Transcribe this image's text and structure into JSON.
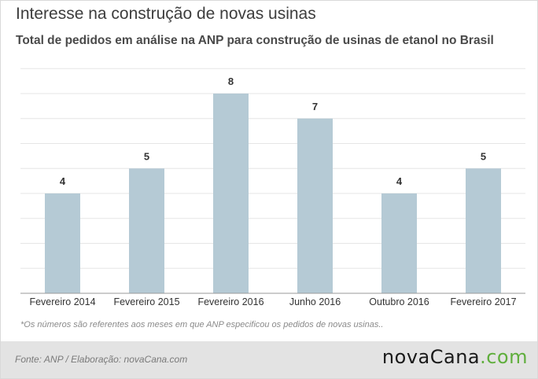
{
  "header": {
    "title": "Interesse na construção de novas usinas",
    "subtitle": "Total de pedidos em análise na ANP para construção de usinas de etanol no Brasil"
  },
  "chart_data": {
    "type": "bar",
    "categories": [
      "Fevereiro 2014",
      "Fevereiro 2015",
      "Fevereiro 2016",
      "Junho 2016",
      "Outubro 2016",
      "Fevereiro 2017"
    ],
    "values": [
      4,
      5,
      8,
      7,
      4,
      5
    ],
    "title": "Interesse na construção de novas usinas",
    "subtitle": "Total de pedidos em análise na ANP para construção de usinas de etanol no Brasil",
    "ylim": [
      0,
      9
    ],
    "grid": true,
    "bar_color": "#b5cad5",
    "grid_color": "#e6e6e6"
  },
  "note": "*Os números são referentes aos meses em que ANP especificou os pedidos de novas usinas..",
  "footer": {
    "source": "Fonte: ANP / Elaboração: novaCana.com",
    "logo_part1": "novaCana",
    "logo_part2": ".com",
    "logo_accent": "#5fae3c"
  }
}
